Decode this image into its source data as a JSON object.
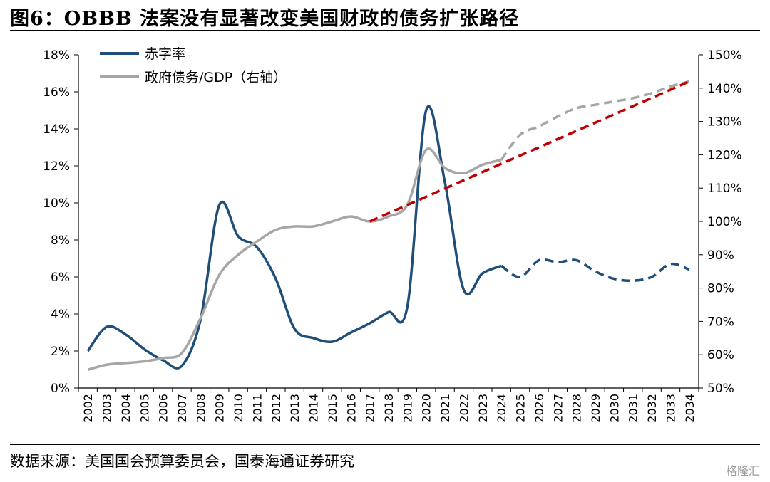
{
  "title": "图6：OBBB 法案没有显著改变美国财政的债务扩张路径",
  "source": "数据来源：美国国会预算委员会，国泰海通证券研究",
  "watermark": "格隆汇",
  "chart_data": {
    "type": "line",
    "title": "图6：OBBB 法案没有显著改变美国财政的债务扩张路径",
    "x": [
      2002,
      2003,
      2004,
      2005,
      2006,
      2007,
      2008,
      2009,
      2010,
      2011,
      2012,
      2013,
      2014,
      2015,
      2016,
      2017,
      2018,
      2019,
      2020,
      2021,
      2022,
      2023,
      2024,
      2025,
      2026,
      2027,
      2028,
      2029,
      2030,
      2031,
      2032,
      2033,
      2034
    ],
    "y_left": {
      "lim": [
        0,
        18
      ],
      "ticks": [
        0,
        2,
        4,
        6,
        8,
        10,
        12,
        14,
        16,
        18
      ],
      "format": "percent"
    },
    "y_right": {
      "lim": [
        50,
        150
      ],
      "ticks": [
        50,
        60,
        70,
        80,
        90,
        100,
        110,
        120,
        130,
        140,
        150
      ],
      "format": "percent"
    },
    "legend_position": "top-left",
    "grid": false,
    "series": [
      {
        "name": "赤字率",
        "axis": "left",
        "color": "#1f4e79",
        "actual_until": 2024,
        "x": [
          2002,
          2003,
          2004,
          2005,
          2006,
          2007,
          2008,
          2009,
          2010,
          2011,
          2012,
          2013,
          2014,
          2015,
          2016,
          2017,
          2018,
          2019,
          2020,
          2021,
          2022,
          2023,
          2024,
          2025,
          2026,
          2027,
          2028,
          2029,
          2030,
          2031,
          2032,
          2033,
          2034
        ],
        "values": [
          2.0,
          3.3,
          2.9,
          2.1,
          1.5,
          1.2,
          3.7,
          9.9,
          8.2,
          7.6,
          5.9,
          3.2,
          2.7,
          2.5,
          3.0,
          3.5,
          4.1,
          4.4,
          15.0,
          11.1,
          5.3,
          6.2,
          6.6,
          6.0,
          6.9,
          6.8,
          6.9,
          6.3,
          5.9,
          5.8,
          6.0,
          6.7,
          6.4
        ]
      },
      {
        "name": "政府债务/GDP（右轴）",
        "axis": "right",
        "color": "#a6a6a6",
        "actual_until": 2024,
        "x": [
          2002,
          2003,
          2004,
          2005,
          2006,
          2007,
          2008,
          2009,
          2010,
          2011,
          2012,
          2013,
          2014,
          2015,
          2016,
          2017,
          2018,
          2019,
          2020,
          2021,
          2022,
          2023,
          2024,
          2025,
          2026,
          2027,
          2028,
          2029,
          2030,
          2031,
          2032,
          2033,
          2034
        ],
        "values": [
          55.5,
          57.0,
          57.5,
          58.0,
          59.0,
          60.5,
          71.0,
          84.0,
          90.0,
          94.0,
          97.5,
          98.5,
          98.5,
          100.0,
          101.5,
          100.0,
          101.5,
          105.0,
          121.5,
          116.0,
          114.5,
          117.0,
          118.5,
          126.0,
          128.5,
          131.5,
          134.0,
          135.0,
          136.0,
          137.0,
          138.5,
          140.5,
          142.0
        ]
      },
      {
        "name": "",
        "axis": "right",
        "color": "#c00000",
        "style": "dashed-trend",
        "x": [
          2017,
          2034
        ],
        "values": [
          100.0,
          142.0
        ]
      }
    ],
    "ylabel": "",
    "xlabel": ""
  }
}
